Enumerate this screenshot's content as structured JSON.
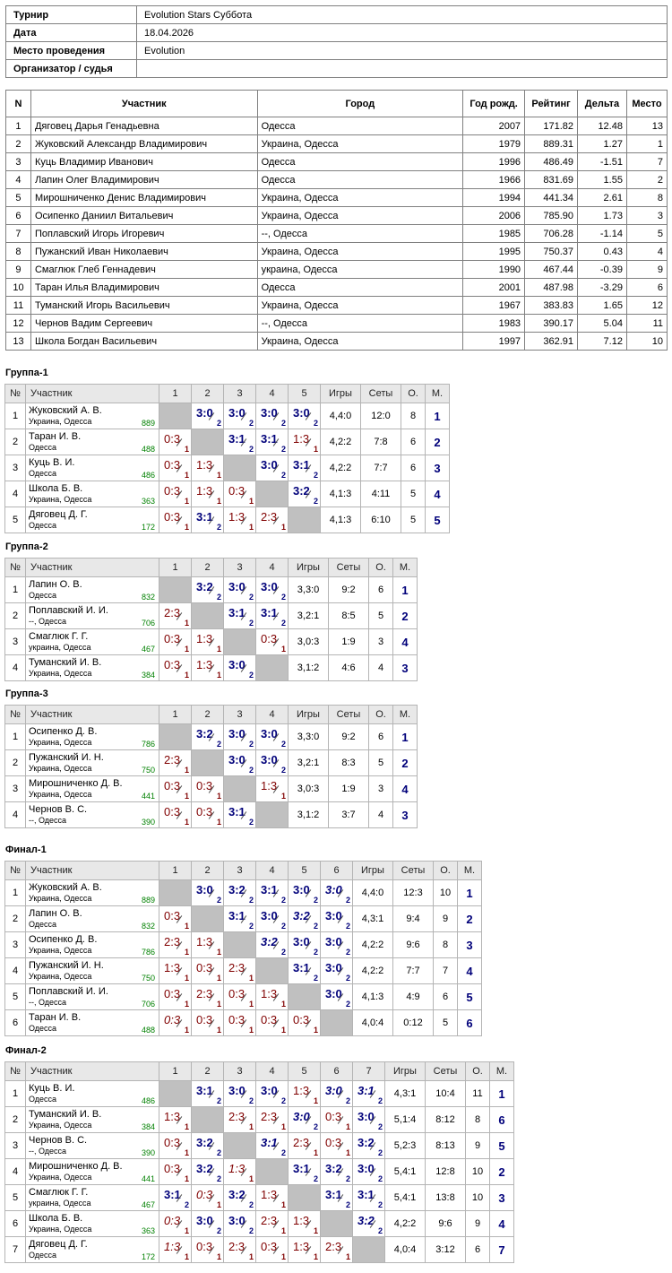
{
  "info": [
    {
      "label": "Турнир",
      "value": "Evolution Stars Суббота"
    },
    {
      "label": "Дата",
      "value": "18.04.2026"
    },
    {
      "label": "Место проведения",
      "value": "Evolution"
    },
    {
      "label": "Организатор / судья",
      "value": ""
    }
  ],
  "players_headers": [
    "N",
    "Участник",
    "Город",
    "Год рожд.",
    "Рейтинг",
    "Дельта",
    "Место"
  ],
  "players": [
    [
      "1",
      "Дяговец Дарья Генадьевна",
      "Одесса",
      "2007",
      "171.82",
      "12.48",
      "13"
    ],
    [
      "2",
      "Жуковский Александр Владимирович",
      "Украина, Одесса",
      "1979",
      "889.31",
      "1.27",
      "1"
    ],
    [
      "3",
      "Куць Владимир Иванович",
      "Одесса",
      "1996",
      "486.49",
      "-1.51",
      "7"
    ],
    [
      "4",
      "Лапин Олег Владимирович",
      "Одесса",
      "1966",
      "831.69",
      "1.55",
      "2"
    ],
    [
      "5",
      "Мирошниченко Денис Владимирович",
      "Украина, Одесса",
      "1994",
      "441.34",
      "2.61",
      "8"
    ],
    [
      "6",
      "Осипенко Даниил Витальевич",
      "Украина, Одесса",
      "2006",
      "785.90",
      "1.73",
      "3"
    ],
    [
      "7",
      "Поплавский Игорь Игоревич",
      "--, Одесса",
      "1985",
      "706.28",
      "-1.14",
      "5"
    ],
    [
      "8",
      "Пужанский Иван Николаевич",
      "Украина, Одесса",
      "1995",
      "750.37",
      "0.43",
      "4"
    ],
    [
      "9",
      "Смаглюк Глеб Геннадевич",
      "украина, Одесса",
      "1990",
      "467.44",
      "-0.39",
      "9"
    ],
    [
      "10",
      "Таран Илья Владимирович",
      "Одесса",
      "2001",
      "487.98",
      "-3.29",
      "6"
    ],
    [
      "11",
      "Туманский Игорь Васильевич",
      "Украина, Одесса",
      "1967",
      "383.83",
      "1.65",
      "12"
    ],
    [
      "12",
      "Чернов Вадим Сергеевич",
      "--, Одесса",
      "1983",
      "390.17",
      "5.04",
      "11"
    ],
    [
      "13",
      "Школа Богдан Васильевич",
      "Украина, Одесса",
      "1997",
      "362.91",
      "7.12",
      "10"
    ]
  ],
  "grid_headers": {
    "num": "№",
    "name": "Участник",
    "games": "Игры",
    "sets": "Сеты",
    "points": "О.",
    "place": "М."
  },
  "groups": [
    {
      "title": "Группа-1",
      "rows": [
        {
          "n": "1",
          "name": "Жуковский А. В.",
          "city": "Украина, Одесса",
          "rating": "889",
          "cells": [
            null,
            "3:0|w|2",
            "3:0|w|2",
            "3:0|w|2",
            "3:0|w|2"
          ],
          "games": "4,4:0",
          "sets": "12:0",
          "points": "8",
          "place": "1"
        },
        {
          "n": "2",
          "name": "Таран И. В.",
          "city": "Одесса",
          "rating": "488",
          "cells": [
            "0:3|l|1",
            null,
            "3:1|w|2",
            "3:1|w|2",
            "1:3|l|1"
          ],
          "games": "4,2:2",
          "sets": "7:8",
          "points": "6",
          "place": "2"
        },
        {
          "n": "3",
          "name": "Куць В. И.",
          "city": "Одесса",
          "rating": "486",
          "cells": [
            "0:3|l|1",
            "1:3|l|1",
            null,
            "3:0|w|2",
            "3:1|w|2"
          ],
          "games": "4,2:2",
          "sets": "7:7",
          "points": "6",
          "place": "3"
        },
        {
          "n": "4",
          "name": "Школа Б. В.",
          "city": "Украина, Одесса",
          "rating": "363",
          "cells": [
            "0:3|l|1",
            "1:3|l|1",
            "0:3|l|1",
            null,
            "3:2|w|2"
          ],
          "games": "4,1:3",
          "sets": "4:11",
          "points": "5",
          "place": "4"
        },
        {
          "n": "5",
          "name": "Дяговец Д. Г.",
          "city": "Одесса",
          "rating": "172",
          "cells": [
            "0:3|l|1",
            "3:1|w|2",
            "1:3|l|1",
            "2:3|l|1",
            null
          ],
          "games": "4,1:3",
          "sets": "6:10",
          "points": "5",
          "place": "5"
        }
      ]
    },
    {
      "title": "Группа-2",
      "rows": [
        {
          "n": "1",
          "name": "Лапин О. В.",
          "city": "Одесса",
          "rating": "832",
          "cells": [
            null,
            "3:2|w|2",
            "3:0|w|2",
            "3:0|w|2"
          ],
          "games": "3,3:0",
          "sets": "9:2",
          "points": "6",
          "place": "1"
        },
        {
          "n": "2",
          "name": "Поплавский И. И.",
          "city": "--, Одесса",
          "rating": "706",
          "cells": [
            "2:3|l|1",
            null,
            "3:1|w|2",
            "3:1|w|2"
          ],
          "games": "3,2:1",
          "sets": "8:5",
          "points": "5",
          "place": "2"
        },
        {
          "n": "3",
          "name": "Смаглюк Г. Г.",
          "city": "украина, Одесса",
          "rating": "467",
          "cells": [
            "0:3|l|1",
            "1:3|l|1",
            null,
            "0:3|l|1"
          ],
          "games": "3,0:3",
          "sets": "1:9",
          "points": "3",
          "place": "4"
        },
        {
          "n": "4",
          "name": "Туманский И. В.",
          "city": "Украина, Одесса",
          "rating": "384",
          "cells": [
            "0:3|l|1",
            "1:3|l|1",
            "3:0|w|2",
            null
          ],
          "games": "3,1:2",
          "sets": "4:6",
          "points": "4",
          "place": "3"
        }
      ]
    },
    {
      "title": "Группа-3",
      "rows": [
        {
          "n": "1",
          "name": "Осипенко Д. В.",
          "city": "Украина, Одесса",
          "rating": "786",
          "cells": [
            null,
            "3:2|w|2",
            "3:0|w|2",
            "3:0|w|2"
          ],
          "games": "3,3:0",
          "sets": "9:2",
          "points": "6",
          "place": "1"
        },
        {
          "n": "2",
          "name": "Пужанский И. Н.",
          "city": "Украина, Одесса",
          "rating": "750",
          "cells": [
            "2:3|l|1",
            null,
            "3:0|w|2",
            "3:0|w|2"
          ],
          "games": "3,2:1",
          "sets": "8:3",
          "points": "5",
          "place": "2"
        },
        {
          "n": "3",
          "name": "Мирошниченко Д. В.",
          "city": "Украина, Одесса",
          "rating": "441",
          "cells": [
            "0:3|l|1",
            "0:3|l|1",
            null,
            "1:3|l|1"
          ],
          "games": "3,0:3",
          "sets": "1:9",
          "points": "3",
          "place": "4"
        },
        {
          "n": "4",
          "name": "Чернов В. С.",
          "city": "--, Одесса",
          "rating": "390",
          "cells": [
            "0:3|l|1",
            "0:3|l|1",
            "3:1|w|2",
            null
          ],
          "games": "3,1:2",
          "sets": "3:7",
          "points": "4",
          "place": "3"
        }
      ]
    },
    {
      "title": "Финал-1",
      "rows": [
        {
          "n": "1",
          "name": "Жуковский А. В.",
          "city": "Украина, Одесса",
          "rating": "889",
          "cells": [
            null,
            "3:0|w|2",
            "3:2|w|2",
            "3:1|w|2",
            "3:0|w|2",
            "3:0|wi|2"
          ],
          "games": "4,4:0",
          "sets": "12:3",
          "points": "10",
          "place": "1"
        },
        {
          "n": "2",
          "name": "Лапин О. В.",
          "city": "Одесса",
          "rating": "832",
          "cells": [
            "0:3|l|1",
            null,
            "3:1|w|2",
            "3:0|w|2",
            "3:2|wi|2",
            "3:0|w|2"
          ],
          "games": "4,3:1",
          "sets": "9:4",
          "points": "9",
          "place": "2"
        },
        {
          "n": "3",
          "name": "Осипенко Д. В.",
          "city": "Украина, Одесса",
          "rating": "786",
          "cells": [
            "2:3|l|1",
            "1:3|l|1",
            null,
            "3:2|wi|2",
            "3:0|w|2",
            "3:0|w|2"
          ],
          "games": "4,2:2",
          "sets": "9:6",
          "points": "8",
          "place": "3"
        },
        {
          "n": "4",
          "name": "Пужанский И. Н.",
          "city": "Украина, Одесса",
          "rating": "750",
          "cells": [
            "1:3|l|1",
            "0:3|l|1",
            "2:3|l|1",
            null,
            "3:1|w|2",
            "3:0|w|2"
          ],
          "games": "4,2:2",
          "sets": "7:7",
          "points": "7",
          "place": "4"
        },
        {
          "n": "5",
          "name": "Поплавский И. И.",
          "city": "--, Одесса",
          "rating": "706",
          "cells": [
            "0:3|l|1",
            "2:3|l|1",
            "0:3|l|1",
            "1:3|l|1",
            null,
            "3:0|w|2"
          ],
          "games": "4,1:3",
          "sets": "4:9",
          "points": "6",
          "place": "5"
        },
        {
          "n": "6",
          "name": "Таран И. В.",
          "city": "Одесса",
          "rating": "488",
          "cells": [
            "0:3|li|1",
            "0:3|l|1",
            "0:3|l|1",
            "0:3|l|1",
            "0:3|l|1",
            null
          ],
          "games": "4,0:4",
          "sets": "0:12",
          "points": "5",
          "place": "6"
        }
      ]
    },
    {
      "title": "Финал-2",
      "rows": [
        {
          "n": "1",
          "name": "Куць В. И.",
          "city": "Одесса",
          "rating": "486",
          "cells": [
            null,
            "3:1|w|2",
            "3:0|w|2",
            "3:0|w|2",
            "1:3|l|1",
            "3:0|wi|2",
            "3:1|wi|2"
          ],
          "games": "4,3:1",
          "sets": "10:4",
          "points": "11",
          "place": "1"
        },
        {
          "n": "2",
          "name": "Туманский И. В.",
          "city": "Украина, Одесса",
          "rating": "384",
          "cells": [
            "1:3|l|1",
            null,
            "2:3|l|1",
            "2:3|l|1",
            "3:0|wi|2",
            "0:3|l|1",
            "3:0|w|2"
          ],
          "games": "5,1:4",
          "sets": "8:12",
          "points": "8",
          "place": "6"
        },
        {
          "n": "3",
          "name": "Чернов В. С.",
          "city": "--, Одесса",
          "rating": "390",
          "cells": [
            "0:3|l|1",
            "3:2|w|2",
            null,
            "3:1|wi|2",
            "2:3|l|1",
            "0:3|l|1",
            "3:2|w|2"
          ],
          "games": "5,2:3",
          "sets": "8:13",
          "points": "9",
          "place": "5"
        },
        {
          "n": "4",
          "name": "Мирошниченко Д. В.",
          "city": "Украина, Одесса",
          "rating": "441",
          "cells": [
            "0:3|l|1",
            "3:2|w|2",
            "1:3|li|1",
            null,
            "3:1|w|2",
            "3:2|w|2",
            "3:0|w|2"
          ],
          "games": "5,4:1",
          "sets": "12:8",
          "points": "10",
          "place": "2"
        },
        {
          "n": "5",
          "name": "Смаглюк Г. Г.",
          "city": "украина, Одесса",
          "rating": "467",
          "cells": [
            "3:1|w|2",
            "0:3|li|1",
            "3:2|w|2",
            "1:3|l|1",
            null,
            "3:1|w|2",
            "3:1|w|2"
          ],
          "games": "5,4:1",
          "sets": "13:8",
          "points": "10",
          "place": "3"
        },
        {
          "n": "6",
          "name": "Школа Б. В.",
          "city": "Украина, Одесса",
          "rating": "363",
          "cells": [
            "0:3|li|1",
            "3:0|w|2",
            "3:0|w|2",
            "2:3|l|1",
            "1:3|l|1",
            null,
            "3:2|wi|2"
          ],
          "games": "4,2:2",
          "sets": "9:6",
          "points": "9",
          "place": "4"
        },
        {
          "n": "7",
          "name": "Дяговец Д. Г.",
          "city": "Одесса",
          "rating": "172",
          "cells": [
            "1:3|li|1",
            "0:3|l|1",
            "2:3|l|1",
            "0:3|l|1",
            "1:3|l|1",
            "2:3|l|1",
            null
          ],
          "games": "4,0:4",
          "sets": "3:12",
          "points": "6",
          "place": "7"
        }
      ]
    }
  ]
}
